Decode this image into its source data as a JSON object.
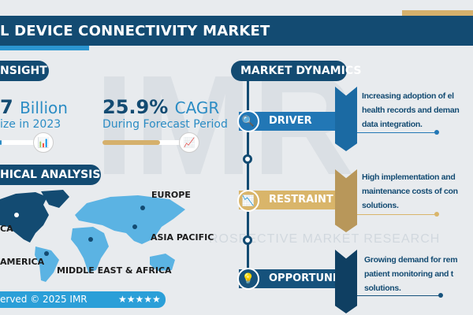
{
  "header": {
    "title": "L DEVICE CONNECTIVITY MARKET"
  },
  "insight": {
    "section_label": "NSIGHT",
    "market_size_value": "7",
    "market_size_unit": "Billion",
    "market_size_caption": "ize in 2023",
    "cagr_value": "25.9%",
    "cagr_label": "CAGR",
    "cagr_caption": "During Forecast Period",
    "market_size_progress": 0.05,
    "cagr_progress": 0.73
  },
  "geo": {
    "section_label": "HICAL ANALYSIS",
    "regions": [
      "EUROPE",
      "CA",
      "ASIA PACIFIC",
      "AMERICA",
      "MIDDLE EAST & AFRICA"
    ]
  },
  "footer": {
    "copyright": "erved © 2025 IMR",
    "stars": "★★★★★"
  },
  "dynamics": {
    "section_label": "MARKET DYNAMICS",
    "items": [
      {
        "label": "DRIVER",
        "icon": "analytics-magnifier-icon",
        "color": "#2277b5",
        "lines": [
          "Increasing adoption of el",
          "health records and deman",
          "data integration."
        ]
      },
      {
        "label": "RESTRAINT",
        "icon": "declining-chart-icon",
        "color": "#d9b56a",
        "lines": [
          "High implementation and",
          "maintenance costs of con",
          "solutions."
        ]
      },
      {
        "label": "OPPORTUNITY",
        "icon": "lightbulb-dollar-icon",
        "color": "#16527c",
        "lines": [
          "Growing demand for rem",
          "patient monitoring and t",
          "solutions."
        ]
      }
    ]
  },
  "watermark": {
    "logo": "IMR",
    "text": "ROSPECTIVE MARKET RESEARCH"
  },
  "colors": {
    "navy": "#134b72",
    "blue": "#2b8cc4",
    "gold": "#d5b06c"
  }
}
